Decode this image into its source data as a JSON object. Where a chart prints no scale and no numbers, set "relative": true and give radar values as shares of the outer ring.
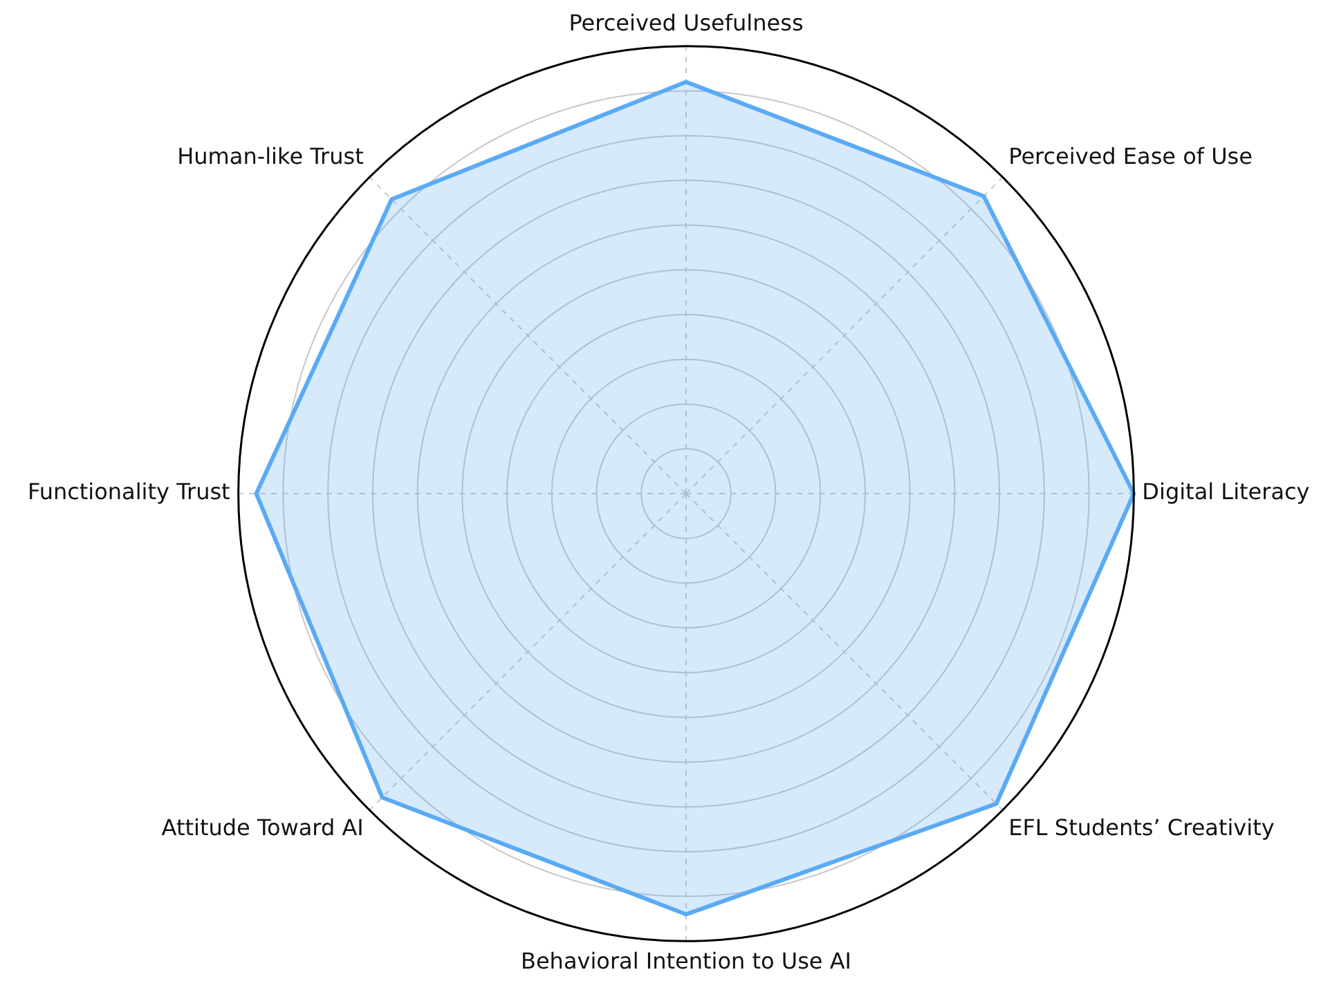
{
  "chart_data": {
    "type": "radar",
    "relative": true,
    "grid": true,
    "legend": false,
    "categories": [
      "Perceived Usefulness",
      "Perceived Ease of Use",
      "Digital Literacy",
      "EFL Students’ Creativity",
      "Behavioral Intention to Use AI",
      "Attitude Toward AI",
      "Functionality Trust",
      "Human-like Trust"
    ],
    "series": [
      {
        "color": "#5aaaf5",
        "values": [
          0.92,
          0.94,
          1.0,
          0.98,
          0.94,
          0.96,
          0.96,
          0.93
        ]
      }
    ]
  }
}
